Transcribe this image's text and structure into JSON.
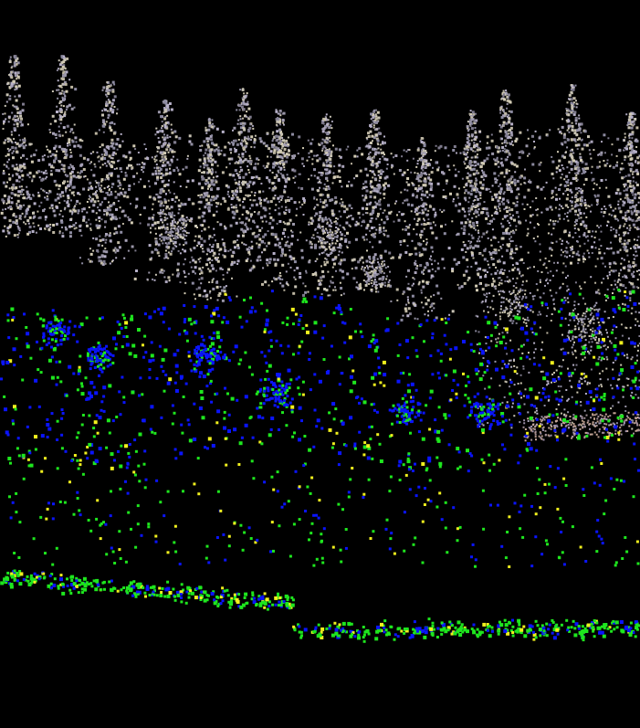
{
  "scene": {
    "background": "#000000",
    "colored_cloud": {
      "palette": [
        "#c8c3b4",
        "#b6b0c8",
        "#9a96a8",
        "#8c8aa0",
        "#d2cbb4",
        "#a8a2b8",
        "#7e7a8c",
        "#bdb6a2"
      ]
    },
    "labels": {
      "class_colors": {
        "blue": "#0a14ff",
        "green": "#1ee61e",
        "yellow": "#f0f01e"
      }
    }
  }
}
